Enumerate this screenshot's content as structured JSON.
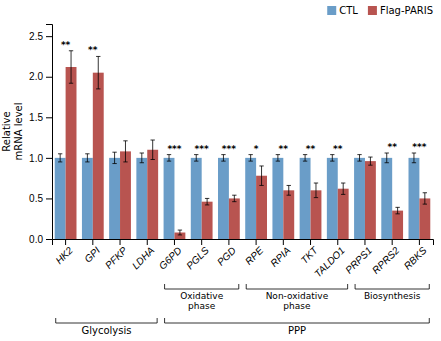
{
  "chart_data": {
    "type": "bar",
    "ylabel": "Relative\nmRNA level",
    "categories": [
      "HK2",
      "GPI",
      "PFKP",
      "LDHA",
      "G6PD",
      "PGLS",
      "PGD",
      "RPE",
      "RPIA",
      "TKT",
      "TALDO1",
      "PRPS1",
      "RPRS2",
      "RBKS"
    ],
    "series": [
      {
        "name": "CTL",
        "color": "#6a9dc8",
        "values": [
          1.0,
          1.0,
          1.0,
          1.0,
          1.0,
          1.0,
          1.0,
          1.0,
          1.0,
          1.0,
          1.0,
          1.0,
          1.0,
          1.0
        ],
        "errors": [
          0.05,
          0.05,
          0.07,
          0.06,
          0.04,
          0.04,
          0.04,
          0.04,
          0.04,
          0.04,
          0.04,
          0.04,
          0.06,
          0.06
        ]
      },
      {
        "name": "Flag-PARIS",
        "color": "#b85450",
        "values": [
          2.12,
          2.05,
          1.08,
          1.1,
          0.08,
          0.46,
          0.5,
          0.78,
          0.6,
          0.6,
          0.62,
          0.96,
          0.35,
          0.5
        ],
        "errors": [
          0.2,
          0.2,
          0.13,
          0.12,
          0.03,
          0.04,
          0.04,
          0.12,
          0.06,
          0.09,
          0.07,
          0.05,
          0.04,
          0.07
        ]
      }
    ],
    "significance": [
      "**",
      "**",
      null,
      null,
      "***",
      "***",
      "***",
      "*",
      "**",
      "**",
      "**",
      null,
      "**",
      "***"
    ],
    "subgroups": [
      {
        "label": "Oxidative\nphase",
        "from": "G6PD",
        "to": "PGD"
      },
      {
        "label": "Non-oxidative\nphase",
        "from": "RPE",
        "to": "TALDO1"
      },
      {
        "label": "Biosynthesis",
        "from": "PRPS1",
        "to": "RBKS"
      }
    ],
    "groups": [
      {
        "label": "Glycolysis",
        "from": "HK2",
        "to": "LDHA"
      },
      {
        "label": "PPP",
        "from": "G6PD",
        "to": "RBKS"
      }
    ],
    "ylim": [
      0,
      2.65
    ],
    "yticks": [
      {
        "value": 0,
        "label": "0.0"
      },
      0.5,
      {
        "value": 1.0,
        "label": "1.0"
      },
      1.5,
      {
        "value": 2.0,
        "label": "2.0"
      },
      2.5
    ],
    "grid": false,
    "legend": "upper right"
  }
}
